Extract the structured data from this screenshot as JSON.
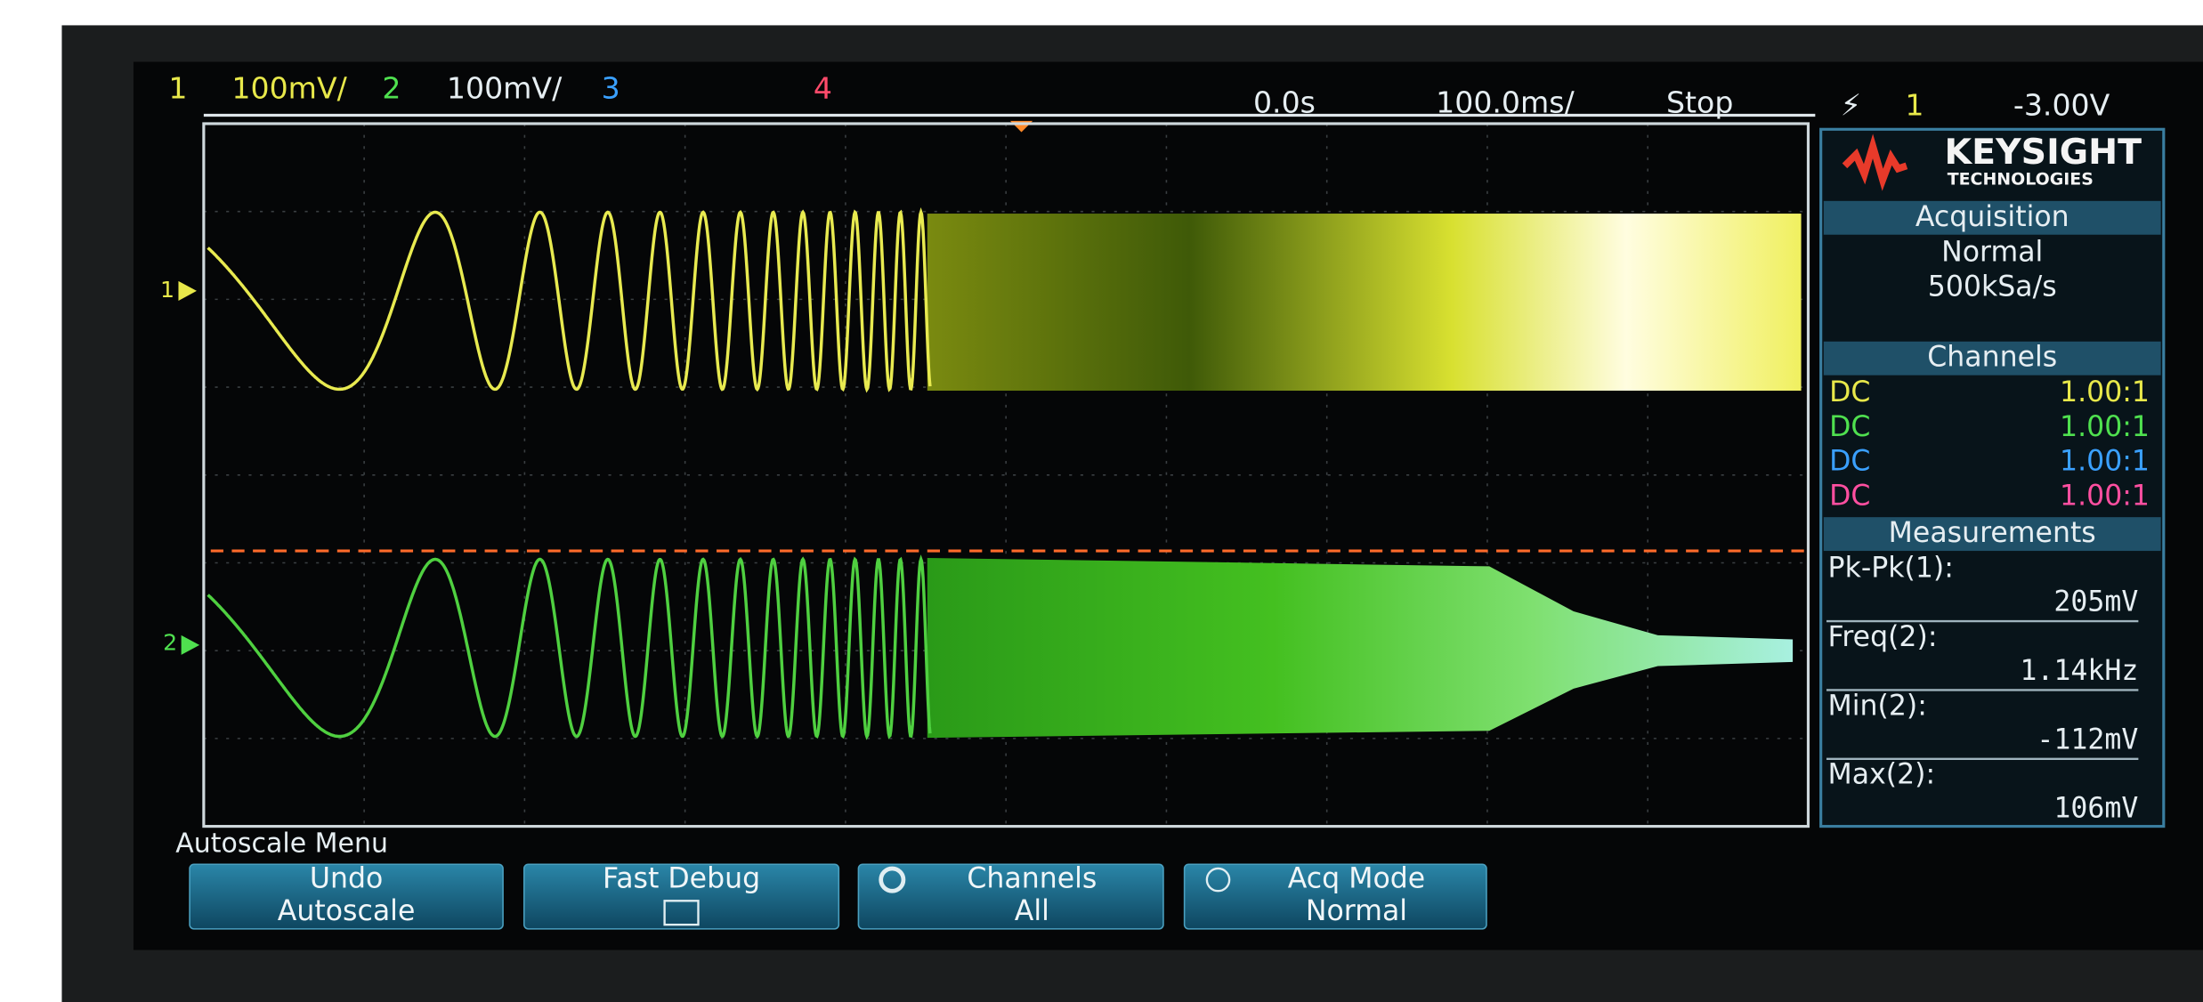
{
  "status_bar": {
    "ch1": {
      "number": "1",
      "scale": "100mV/"
    },
    "ch2": {
      "number": "2",
      "scale": "100mV/"
    },
    "ch3": {
      "number": "3"
    },
    "ch4": {
      "number": "4"
    },
    "time_position": "0.0s",
    "time_scale": "100.0ms/",
    "run_state": "Stop",
    "trigger": {
      "source": "1",
      "level": "-3.00V"
    }
  },
  "brand": {
    "name": "KEYSIGHT",
    "subtitle": "TECHNOLOGIES"
  },
  "acquisition": {
    "title": "Acquisition",
    "mode": "Normal",
    "sample_rate": "500kSa/s"
  },
  "channels": {
    "title": "Channels",
    "rows": [
      {
        "coupling": "DC",
        "probe": "1.00:1"
      },
      {
        "coupling": "DC",
        "probe": "1.00:1"
      },
      {
        "coupling": "DC",
        "probe": "1.00:1"
      },
      {
        "coupling": "DC",
        "probe": "1.00:1"
      }
    ]
  },
  "measurements": {
    "title": "Measurements",
    "items": [
      {
        "label": "Pk-Pk(1):",
        "value": "205mV"
      },
      {
        "label": "Freq(2):",
        "value": "1.14kHz"
      },
      {
        "label": "Min(2):",
        "value": "-112mV"
      },
      {
        "label": "Max(2):",
        "value": "106mV"
      }
    ]
  },
  "softkey_menu": {
    "title": "Autoscale Menu",
    "keys": [
      {
        "lines": [
          "Undo",
          "Autoscale"
        ]
      },
      {
        "lines": [
          "Fast Debug"
        ]
      },
      {
        "lines": [
          "Channels",
          "All"
        ]
      },
      {
        "lines": [
          "Acq Mode",
          "Normal"
        ]
      }
    ]
  }
}
